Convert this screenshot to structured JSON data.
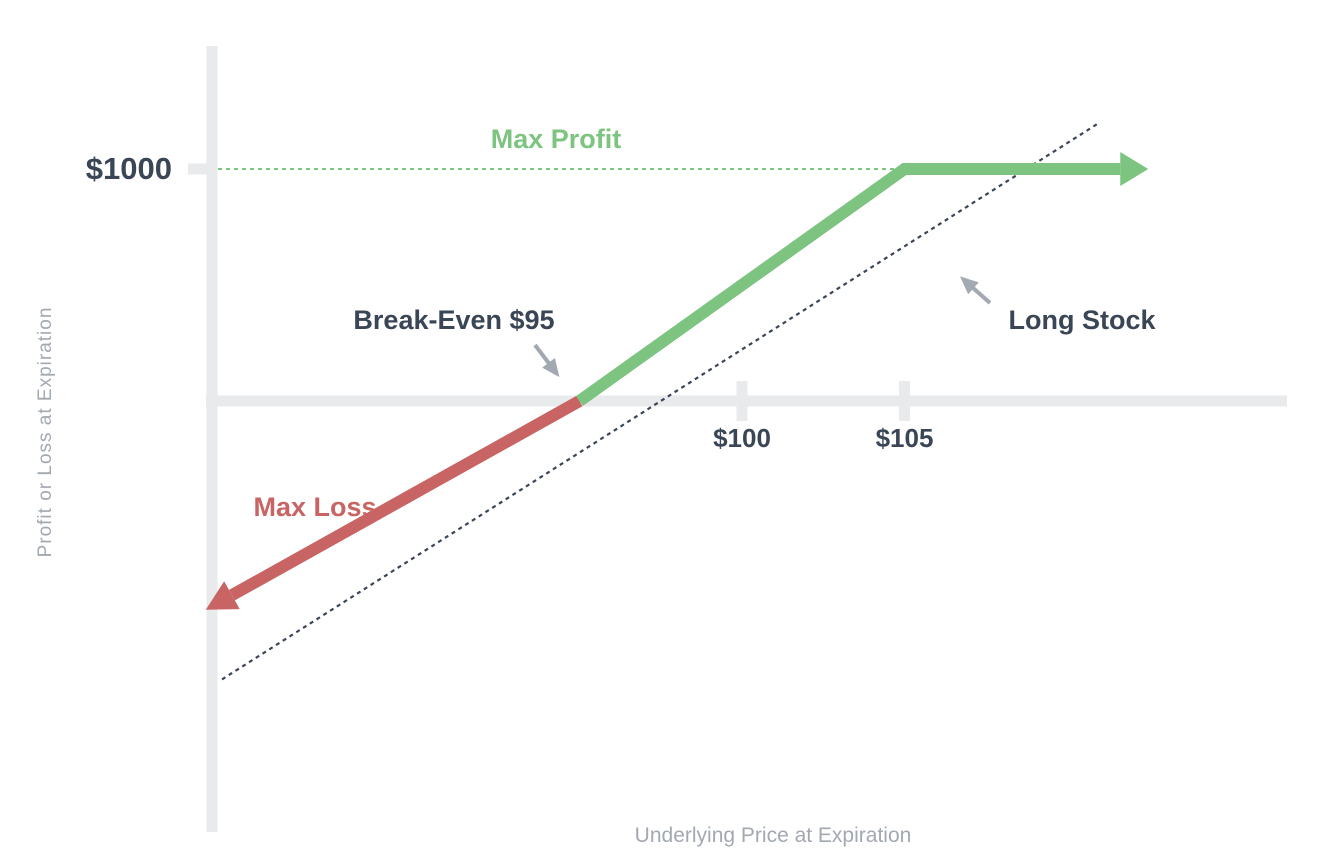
{
  "colors": {
    "profit": "#7cc47f",
    "loss": "#c96464",
    "axis": "#e9eaec",
    "dark": "#3a4656",
    "muted": "#a3a9b1",
    "annotation_arrow": "#a3a9b1"
  },
  "chart_data": {
    "type": "line",
    "title": "",
    "xlabel": "Underlying Price at Expiration",
    "ylabel": "Profit or Loss at Expiration",
    "xlim": [
      83,
      111
    ],
    "ylim": [
      -1450,
      1000
    ],
    "x_ticks": [
      {
        "value": 100,
        "label": "$100"
      },
      {
        "value": 105,
        "label": "$105"
      }
    ],
    "y_ticks": [
      {
        "value": 1000,
        "label": "$1000"
      }
    ],
    "series": [
      {
        "style": "payoff",
        "points": [
          [
            83.5,
            -900
          ],
          [
            95,
            0
          ],
          [
            105,
            1000
          ],
          [
            112.5,
            1000
          ]
        ],
        "color_above_zero": "#7cc47f",
        "color_below_zero": "#c96464"
      },
      {
        "style": "dotted-reference",
        "points": [
          [
            84,
            -1200
          ],
          [
            111,
            1200
          ]
        ],
        "color": "#3a4656"
      }
    ],
    "reference_lines": [
      {
        "y": 1000,
        "style": "dotted",
        "color": "#7cc47f"
      }
    ],
    "annotations": {
      "max_profit": "Max Profit",
      "max_loss": "Max Loss",
      "break_even": "Break-Even $95",
      "long_stock": "Long Stock"
    },
    "grid": false
  }
}
